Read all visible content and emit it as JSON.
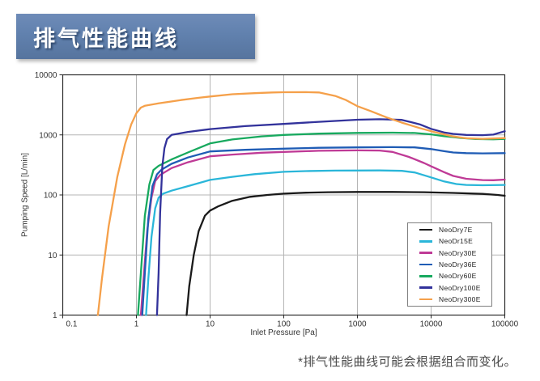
{
  "banner": {
    "title": "排气性能曲线",
    "background_color": "#6181ae"
  },
  "footer": {
    "note": "*排气性能曲线可能会根据组合而变化。"
  },
  "chart_data": {
    "type": "line",
    "grid": true,
    "legend_position": "inside-bottom-right",
    "border_color": "#2b2b2b",
    "grid_color": "#b5b5b5",
    "x_axis": {
      "label": "Inlet Pressure [Pa]",
      "scale": "log",
      "min": 0.1,
      "max": 100000,
      "tick_labels": [
        "0.1",
        "1",
        "10",
        "100",
        "1000",
        "10000",
        "100000"
      ]
    },
    "y_axis": {
      "label": "Pumping Speed [L/min]",
      "scale": "log",
      "min": 1,
      "max": 10000,
      "tick_labels": [
        "1",
        "10",
        "100",
        "1000",
        "10000"
      ]
    },
    "series": [
      {
        "name": "NeoDry7E",
        "color": "#1a1a1a",
        "points": [
          [
            4.8,
            1
          ],
          [
            5.2,
            3
          ],
          [
            6,
            10
          ],
          [
            7,
            25
          ],
          [
            8.5,
            45
          ],
          [
            10,
            55
          ],
          [
            13,
            65
          ],
          [
            20,
            80
          ],
          [
            35,
            93
          ],
          [
            60,
            100
          ],
          [
            100,
            105
          ],
          [
            200,
            109
          ],
          [
            400,
            111
          ],
          [
            1000,
            112
          ],
          [
            3000,
            112
          ],
          [
            8000,
            111
          ],
          [
            20000,
            108
          ],
          [
            50000,
            104
          ],
          [
            80000,
            100
          ],
          [
            100000,
            97
          ]
        ]
      },
      {
        "name": "NeoDr15E",
        "color": "#2ab6d9",
        "points": [
          [
            1.35,
            1
          ],
          [
            1.45,
            4
          ],
          [
            1.6,
            20
          ],
          [
            1.8,
            60
          ],
          [
            2.0,
            90
          ],
          [
            2.3,
            105
          ],
          [
            3,
            118
          ],
          [
            5,
            140
          ],
          [
            10,
            178
          ],
          [
            20,
            200
          ],
          [
            40,
            222
          ],
          [
            100,
            243
          ],
          [
            200,
            250
          ],
          [
            500,
            254
          ],
          [
            1000,
            255
          ],
          [
            2000,
            256
          ],
          [
            4000,
            252
          ],
          [
            6000,
            237
          ],
          [
            10000,
            196
          ],
          [
            15000,
            168
          ],
          [
            22000,
            152
          ],
          [
            30000,
            147
          ],
          [
            50000,
            145
          ],
          [
            100000,
            147
          ]
        ]
      },
      {
        "name": "NeoDry30E",
        "color": "#bf3a96",
        "points": [
          [
            1.15,
            1
          ],
          [
            1.25,
            4
          ],
          [
            1.4,
            25
          ],
          [
            1.6,
            90
          ],
          [
            1.8,
            170
          ],
          [
            2.1,
            215
          ],
          [
            3,
            280
          ],
          [
            5,
            350
          ],
          [
            10,
            440
          ],
          [
            20,
            470
          ],
          [
            50,
            505
          ],
          [
            100,
            520
          ],
          [
            300,
            543
          ],
          [
            1000,
            552
          ],
          [
            2000,
            548
          ],
          [
            3000,
            520
          ],
          [
            5000,
            430
          ],
          [
            8000,
            340
          ],
          [
            10000,
            300
          ],
          [
            15000,
            240
          ],
          [
            20000,
            207
          ],
          [
            30000,
            186
          ],
          [
            50000,
            177
          ],
          [
            70000,
            176
          ],
          [
            100000,
            180
          ]
        ]
      },
      {
        "name": "NeoDry36E",
        "color": "#1f5cb5",
        "points": [
          [
            1.2,
            1
          ],
          [
            1.3,
            5
          ],
          [
            1.45,
            40
          ],
          [
            1.65,
            140
          ],
          [
            1.9,
            220
          ],
          [
            2.2,
            265
          ],
          [
            3,
            330
          ],
          [
            5,
            420
          ],
          [
            10,
            530
          ],
          [
            30,
            565
          ],
          [
            100,
            590
          ],
          [
            300,
            610
          ],
          [
            1000,
            620
          ],
          [
            3000,
            625
          ],
          [
            6000,
            620
          ],
          [
            10000,
            580
          ],
          [
            15000,
            535
          ],
          [
            20000,
            510
          ],
          [
            30000,
            497
          ],
          [
            50000,
            492
          ],
          [
            100000,
            497
          ]
        ]
      },
      {
        "name": "NeoDry60E",
        "color": "#17a95e",
        "points": [
          [
            1.05,
            1
          ],
          [
            1.15,
            5
          ],
          [
            1.3,
            45
          ],
          [
            1.5,
            150
          ],
          [
            1.7,
            260
          ],
          [
            2.0,
            305
          ],
          [
            3,
            390
          ],
          [
            5,
            510
          ],
          [
            10,
            720
          ],
          [
            20,
            840
          ],
          [
            50,
            945
          ],
          [
            100,
            1000
          ],
          [
            300,
            1050
          ],
          [
            1000,
            1080
          ],
          [
            3000,
            1090
          ],
          [
            6000,
            1075
          ],
          [
            10000,
            1020
          ],
          [
            15000,
            950
          ],
          [
            25000,
            890
          ],
          [
            40000,
            855
          ],
          [
            70000,
            845
          ],
          [
            100000,
            858
          ]
        ]
      },
      {
        "name": "NeoDry100E",
        "color": "#32329b",
        "points": [
          [
            1.9,
            1
          ],
          [
            2.0,
            5
          ],
          [
            2.1,
            50
          ],
          [
            2.25,
            300
          ],
          [
            2.4,
            600
          ],
          [
            2.6,
            850
          ],
          [
            3,
            1000
          ],
          [
            5,
            1120
          ],
          [
            10,
            1250
          ],
          [
            30,
            1400
          ],
          [
            100,
            1520
          ],
          [
            300,
            1650
          ],
          [
            1000,
            1790
          ],
          [
            2000,
            1820
          ],
          [
            4000,
            1780
          ],
          [
            7000,
            1500
          ],
          [
            10000,
            1260
          ],
          [
            15000,
            1100
          ],
          [
            20000,
            1040
          ],
          [
            30000,
            1000
          ],
          [
            50000,
            990
          ],
          [
            70000,
            1010
          ],
          [
            100000,
            1150
          ]
        ]
      },
      {
        "name": "NeoDry300E",
        "color": "#f5a04a",
        "points": [
          [
            0.3,
            1
          ],
          [
            0.34,
            4
          ],
          [
            0.42,
            30
          ],
          [
            0.55,
            200
          ],
          [
            0.7,
            700
          ],
          [
            0.85,
            1500
          ],
          [
            1.0,
            2300
          ],
          [
            1.15,
            2850
          ],
          [
            1.3,
            3050
          ],
          [
            2,
            3350
          ],
          [
            4,
            3800
          ],
          [
            7,
            4150
          ],
          [
            10,
            4350
          ],
          [
            20,
            4750
          ],
          [
            40,
            4950
          ],
          [
            70,
            5080
          ],
          [
            100,
            5130
          ],
          [
            200,
            5150
          ],
          [
            300,
            5080
          ],
          [
            500,
            4450
          ],
          [
            700,
            3800
          ],
          [
            1000,
            3000
          ],
          [
            1500,
            2500
          ],
          [
            2500,
            1950
          ],
          [
            4000,
            1600
          ],
          [
            7000,
            1300
          ],
          [
            10000,
            1150
          ],
          [
            15000,
            1020
          ],
          [
            20000,
            940
          ],
          [
            30000,
            880
          ],
          [
            50000,
            860
          ],
          [
            100000,
            885
          ]
        ]
      }
    ]
  }
}
